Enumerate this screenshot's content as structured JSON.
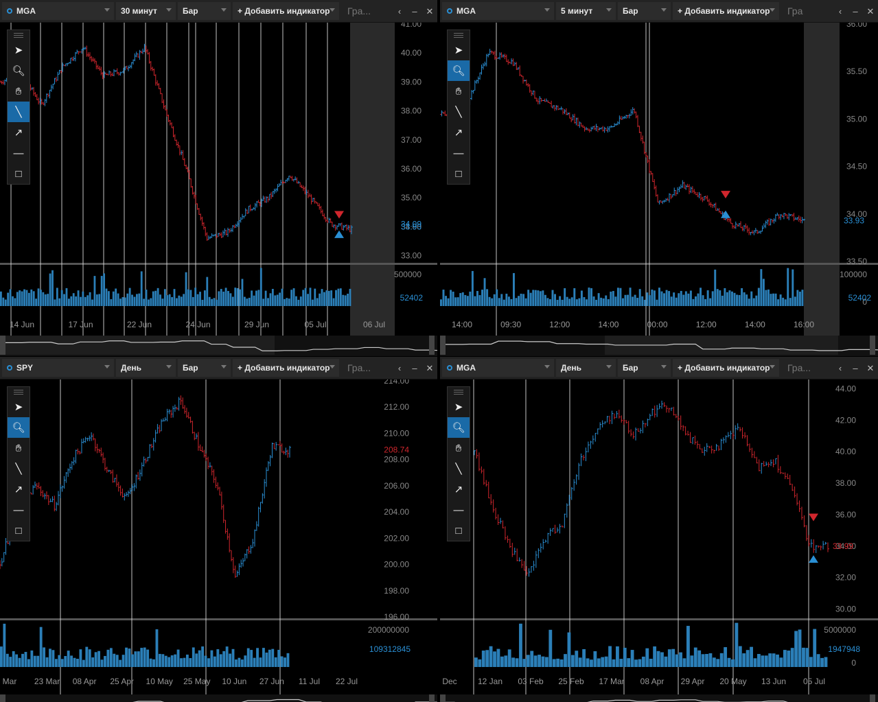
{
  "colors": {
    "up": "#2a8fd4",
    "down": "#d0262d",
    "volume": "#2b7fb8",
    "grid": "#e6e6e6",
    "axis_text": "#888888",
    "panel_bg": "#000000",
    "toolbar_bg": "#232323",
    "active_tool": "#1a6aa7"
  },
  "toolbar_common": {
    "chart_type": "Бар",
    "add_indicator": "+ Добавить индикатор",
    "tab_tail": "Гра..."
  },
  "tools": [
    "cursor-icon",
    "zoom-icon",
    "hand-icon",
    "line-icon",
    "arrow-icon",
    "hline-icon",
    "rectangle-icon"
  ],
  "panels": [
    {
      "symbol": "MGA",
      "interval": "30 минут",
      "tab_tail": "Гра...",
      "price_labels": [
        "41.00",
        "40.00",
        "39.00",
        "38.00",
        "37.00",
        "36.00",
        "35.00",
        "34.00",
        "33.00"
      ],
      "last_price": "34.09",
      "last_price2": "33.93",
      "volume_labels": [
        "500000"
      ],
      "last_volume": "52402",
      "time_labels": [
        "14 Jun",
        "17 Jun",
        "22 Jun",
        "24 Jun",
        "29 Jun",
        "05 Jul",
        "06 Jul"
      ]
    },
    {
      "symbol": "MGA",
      "interval": "5 минут",
      "tab_tail": "Гра",
      "price_labels": [
        "36.00",
        "35.50",
        "35.00",
        "34.50",
        "34.00",
        "33.50"
      ],
      "last_price": "33.93",
      "volume_labels": [
        "100000",
        "0"
      ],
      "last_volume": "52402",
      "time_labels": [
        "14:00",
        "09:30",
        "12:00",
        "14:00",
        "00:00",
        "12:00",
        "14:00",
        "16:00"
      ]
    },
    {
      "symbol": "SPY",
      "interval": "День",
      "tab_tail": "Гра...",
      "price_labels": [
        "214.00",
        "212.00",
        "210.00",
        "208.00",
        "206.00",
        "204.00",
        "202.00",
        "200.00",
        "198.00",
        "196.00"
      ],
      "last_price": "208.74",
      "volume_labels": [
        "200000000"
      ],
      "last_volume": "109312845",
      "time_labels": [
        "Mar",
        "23 Mar",
        "08 Apr",
        "25 Apr",
        "10 May",
        "25 May",
        "10 Jun",
        "27 Jun",
        "11 Jul",
        "22 Jul"
      ]
    },
    {
      "symbol": "MGA",
      "interval": "День",
      "tab_tail": "Гра...",
      "price_labels": [
        "44.00",
        "42.00",
        "40.00",
        "38.00",
        "36.00",
        "34.00",
        "32.00",
        "30.00"
      ],
      "last_price": "33.99",
      "volume_labels": [
        "5000000",
        "0"
      ],
      "last_volume": "1947948",
      "time_labels": [
        "Dec",
        "12 Jan",
        "03 Feb",
        "25 Feb",
        "17 Mar",
        "08 Apr",
        "29 Apr",
        "20 May",
        "13 Jun",
        "05 Jul"
      ]
    }
  ],
  "chart_data": [
    {
      "type": "bar",
      "title": "MGA 30 минут",
      "x": [
        "14 Jun",
        "17 Jun",
        "22 Jun",
        "24 Jun",
        "29 Jun",
        "05 Jul"
      ],
      "close_path": [
        39.0,
        39.3,
        38.2,
        39.5,
        40.2,
        39.2,
        39.4,
        40.2,
        38.0,
        36.0,
        33.6,
        33.8,
        34.6,
        35.0,
        35.8,
        35.0,
        34.1,
        33.9
      ],
      "ylim": [
        32.8,
        41.0
      ]
    },
    {
      "type": "bar",
      "title": "MGA 5 минут",
      "x": [
        "14:00",
        "09:30",
        "12:00",
        "14:00",
        "00:00",
        "12:00",
        "14:00",
        "16:00"
      ],
      "close_path": [
        35.05,
        35.1,
        35.7,
        35.6,
        35.2,
        35.1,
        34.9,
        34.9,
        35.1,
        34.1,
        34.3,
        34.15,
        33.9,
        33.8,
        34.0,
        33.93
      ],
      "ylim": [
        33.5,
        36.0
      ]
    },
    {
      "type": "bar",
      "title": "SPY День",
      "x": [
        "23 Mar",
        "08 Apr",
        "25 Apr",
        "10 May",
        "25 May",
        "10 Jun",
        "27 Jun"
      ],
      "close_path": [
        200.0,
        204.5,
        206.0,
        204.5,
        208.0,
        210.0,
        207.0,
        205.0,
        208.0,
        211.0,
        212.5,
        209.0,
        206.0,
        199.0,
        202.0,
        209.0,
        208.74
      ],
      "ylim": [
        196.0,
        214.0
      ]
    },
    {
      "type": "bar",
      "title": "MGA День",
      "x": [
        "12 Jan",
        "03 Feb",
        "25 Feb",
        "17 Mar",
        "08 Apr",
        "29 Apr",
        "20 May",
        "13 Jun",
        "05 Jul"
      ],
      "close_path": [
        40.0,
        36.5,
        34.0,
        32.0,
        34.5,
        35.5,
        39.5,
        41.5,
        42.5,
        41.0,
        42.5,
        43.0,
        41.0,
        40.0,
        40.5,
        41.5,
        39.0,
        39.5,
        37.5,
        34.0,
        33.99
      ],
      "ylim": [
        29.5,
        44.5
      ]
    }
  ]
}
